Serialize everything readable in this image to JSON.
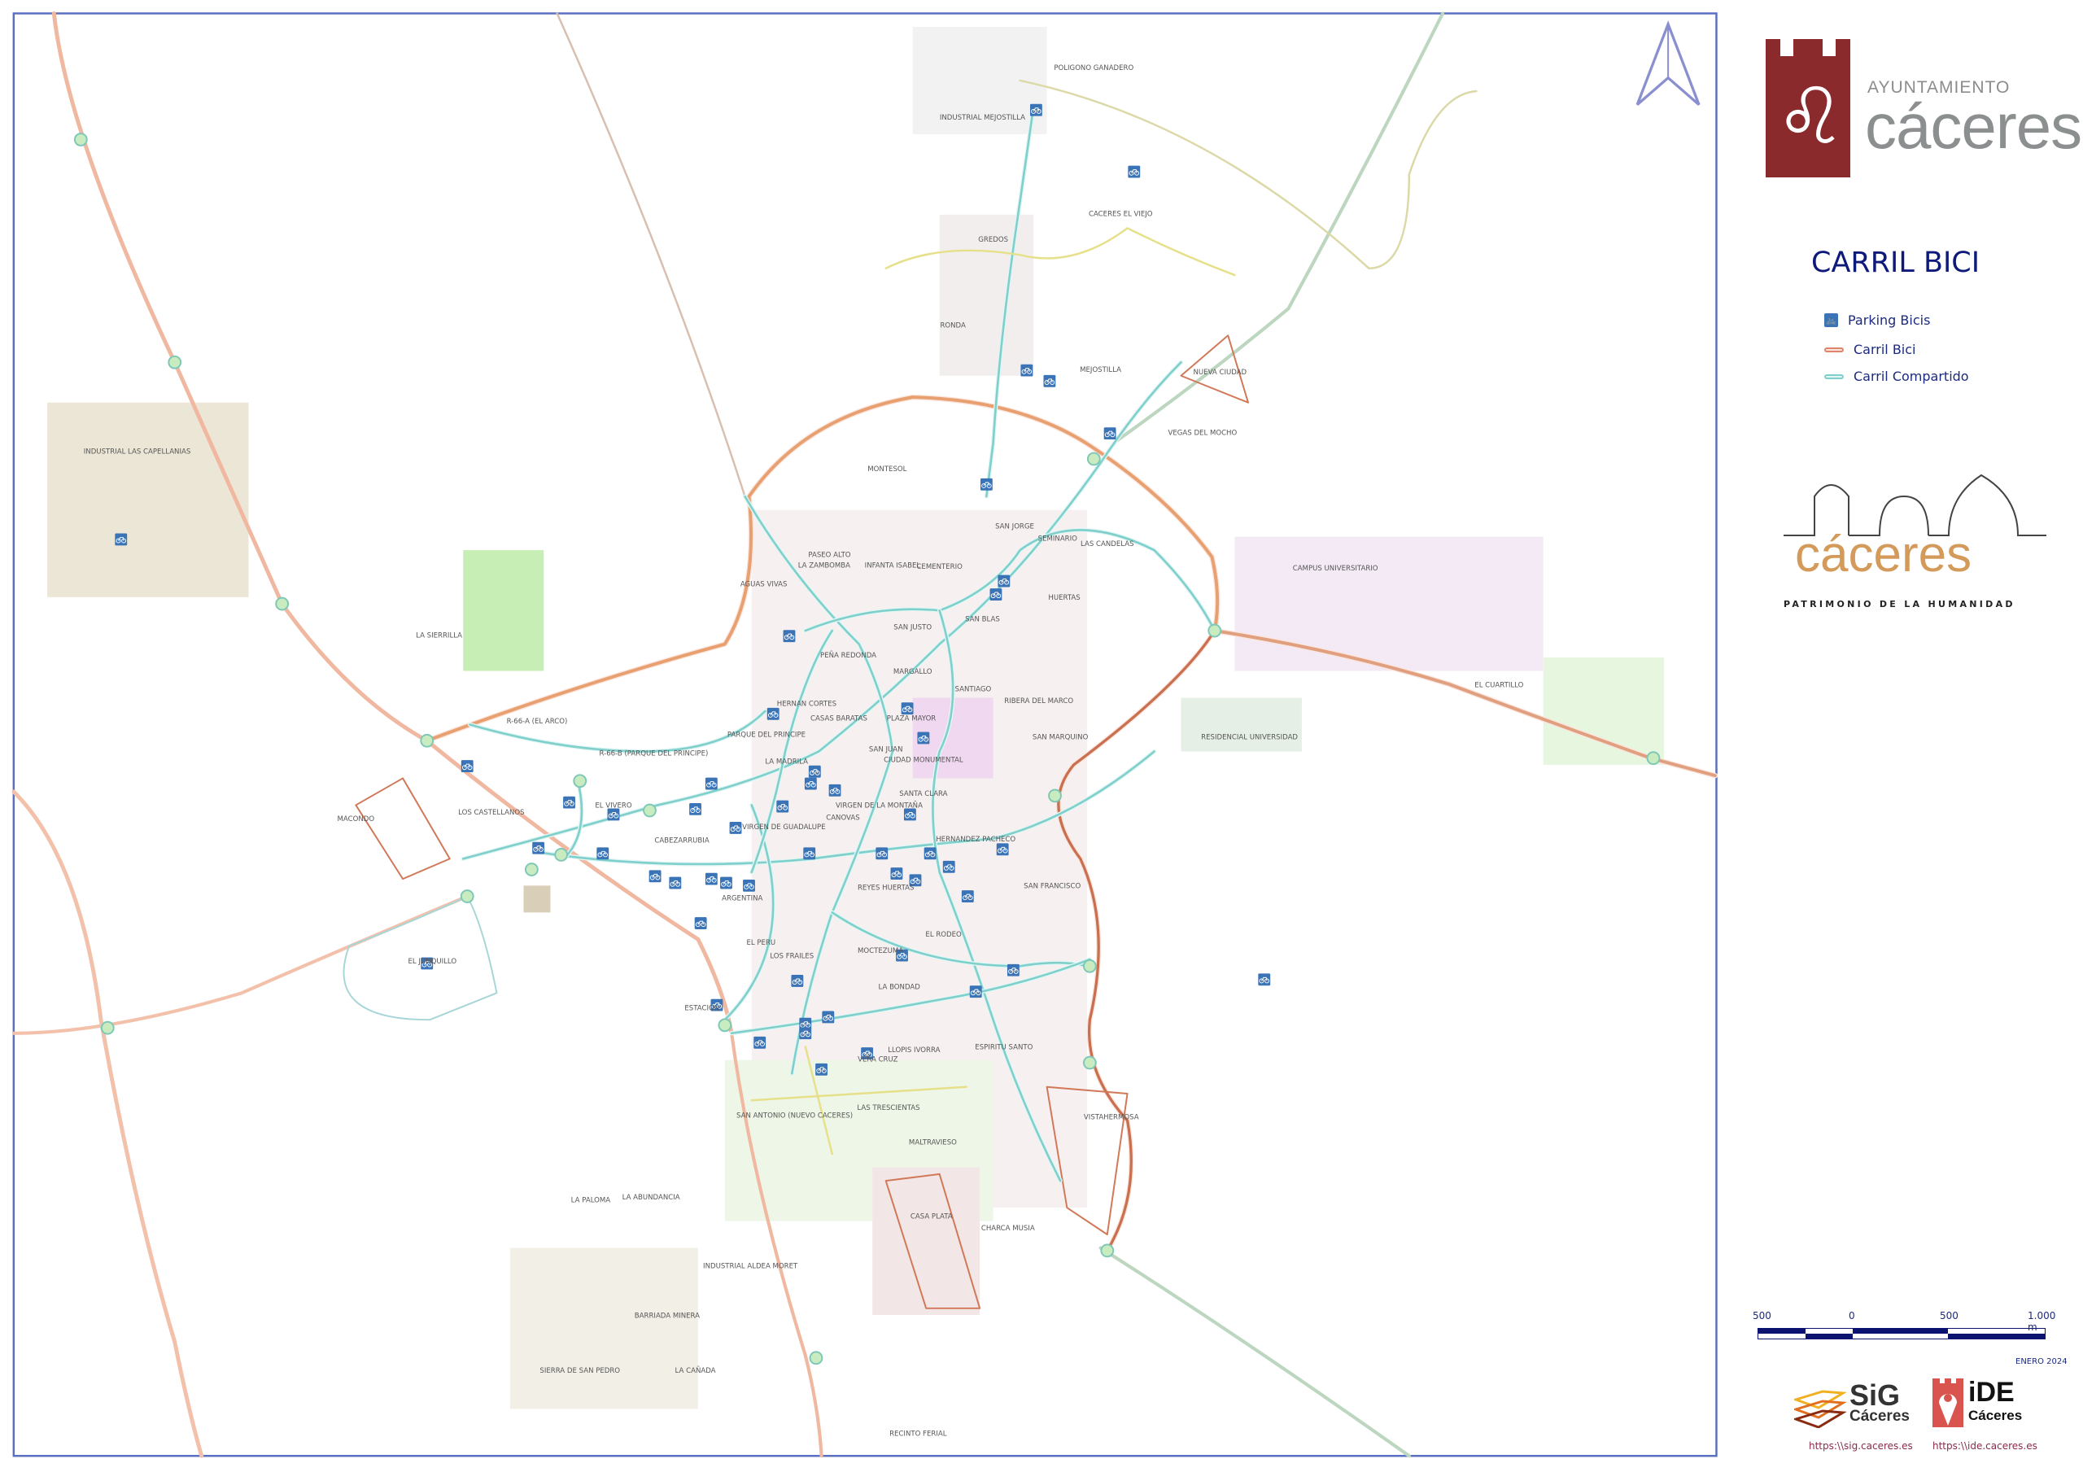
{
  "map": {
    "labels": [
      "POLIGONO GANADERO",
      "INDUSTRIAL MEJOSTILLA",
      "CACERES EL VIEJO",
      "GREDOS",
      "RONDA",
      "MEJOSTILLA",
      "NUEVA CIUDAD",
      "VEGAS DEL MOCHO",
      "MONTESOL",
      "INDUSTRIAL LAS CAPELLANIAS",
      "SAN JORGE",
      "SEMINARIO",
      "LAS CANDELAS",
      "PASEO ALTO",
      "LA ZAMBOMBA",
      "INFANTA ISABEL",
      "CEMENTERIO",
      "AGUAS VIVAS",
      "CAMPUS UNIVERSITARIO",
      "HUERTAS",
      "SAN BLAS",
      "SAN JUSTO",
      "LA SIERRILLA",
      "PEÑA REDONDA",
      "MARGALLO",
      "SANTIAGO",
      "EL CUARTILLO",
      "HERNAN CORTES",
      "RIBERA DEL MARCO",
      "CASAS BARATAS",
      "PLAZA MAYOR",
      "R-66-A (EL ARCO)",
      "PARQUE DEL PRINCIPE",
      "SAN MARQUINO",
      "RESIDENCIAL UNIVERSIDAD",
      "R-66-B (PARQUE DEL PRINCIPE)",
      "SAN JUAN",
      "CIUDAD MONUMENTAL",
      "LA MADRILA",
      "SANTA CLARA",
      "EL VIVERO",
      "VIRGEN DE LA MONTAÑA",
      "LOS CASTELLANOS",
      "MACONDO",
      "CANOVAS",
      "VIRGEN DE GUADALUPE",
      "CABEZARRUBIA",
      "HERNANDEZ PACHECO",
      "SAN FRANCISCO",
      "REYES HUERTAS",
      "ARGENTINA",
      "EL RODEO",
      "EL PERU",
      "LOS FRAILES",
      "MOCTEZUMA",
      "EL JUNQUILLO",
      "LA BONDAD",
      "ESTACION",
      "LLOPIS IVORRA",
      "VERA CRUZ",
      "ESPIRITU SANTO",
      "SAN ANTONIO (NUEVO CACERES)",
      "LAS TRESCIENTAS",
      "VISTAHERMOSA",
      "MALTRAVIESO",
      "LA PALOMA",
      "LA ABUNDANCIA",
      "CASA PLATA",
      "CHARCA MUSIA",
      "INDUSTRIAL ALDEA MORET",
      "BARRIADA MINERA",
      "SIERRA DE SAN PEDRO",
      "LA CAÑADA",
      "RECINTO FERIAL"
    ],
    "north_arrow_icon": "north-arrow-icon",
    "parking_icon": "bicycle-parking-icon",
    "colors": {
      "carril_bici": "#e0836a",
      "carril_compartido": "#7fd0cc",
      "parking": "#3a74b7",
      "frame": "#5b6fc0",
      "park": "#b8e6a8",
      "building": "#d9cfb8"
    }
  },
  "header": {
    "logo_ayuntamiento": "AYUNTAMIENTO",
    "logo_city": "cáceres",
    "title": "CARRIL BICI"
  },
  "legend": {
    "items": [
      {
        "label": "Parking Bicis",
        "icon": "bicycle-parking-icon"
      },
      {
        "label": "Carril Bici",
        "color": "#e0836a"
      },
      {
        "label": "Carril Compartido",
        "color": "#7fd0cc"
      }
    ]
  },
  "patrimonio": {
    "word": "cáceres",
    "sub": "PATRIMONIO DE LA HUMANIDAD"
  },
  "scale": {
    "ticks": [
      "500",
      "0",
      "500",
      "1.000 m"
    ]
  },
  "date": "ENERO 2024",
  "footer": {
    "sig_logo": "SiG",
    "sig_sub": "Cáceres",
    "sig_url": "https:\\\\sig.caceres.es",
    "ide_logo": "iDE",
    "ide_sub": "Cáceres",
    "ide_url": "https:\\\\ide.caceres.es"
  }
}
